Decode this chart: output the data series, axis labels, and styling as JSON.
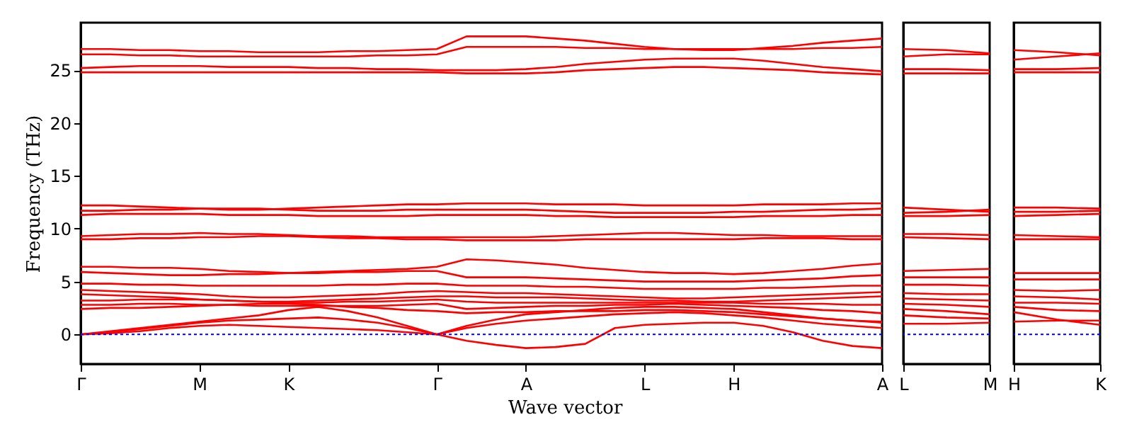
{
  "chart_data": [
    {
      "type": "line",
      "xlabel": "Wave vector",
      "ylabel": "Frequency (THz)",
      "marker": "none",
      "line_style": "solid",
      "grid": false,
      "categories": [
        "Γ",
        null,
        null,
        null,
        "M",
        null,
        null,
        "K",
        null,
        null,
        null,
        null,
        "Γ",
        null,
        null,
        "A",
        null,
        null,
        null,
        "L",
        null,
        null,
        "H",
        null,
        null,
        null,
        null,
        "A"
      ],
      "ylim": [
        -2.8,
        29.5
      ],
      "yticks": [
        0,
        5,
        10,
        15,
        20,
        25
      ],
      "ref_lines": [
        {
          "axis": "y",
          "value": 0,
          "color": "#0000ff",
          "line_style": "dotted"
        }
      ],
      "series": [
        {
          "color": "#ff0000",
          "values": [
            27.0,
            27.0,
            26.9,
            26.9,
            26.8,
            26.8,
            26.7,
            26.7,
            26.7,
            26.8,
            26.8,
            26.9,
            27.0,
            28.2,
            28.2,
            28.2,
            28.0,
            27.8,
            27.5,
            27.2,
            27.0,
            26.9,
            26.9,
            27.1,
            27.3,
            27.6,
            27.8,
            28.0
          ]
        },
        {
          "color": "#ff0000",
          "values": [
            26.5,
            26.5,
            26.4,
            26.4,
            26.3,
            26.3,
            26.3,
            26.3,
            26.3,
            26.3,
            26.4,
            26.4,
            26.5,
            27.2,
            27.2,
            27.2,
            27.2,
            27.1,
            27.1,
            27.0,
            27.0,
            27.0,
            27.0,
            27.0,
            27.0,
            27.1,
            27.1,
            27.2
          ]
        },
        {
          "color": "#ff0000",
          "values": [
            25.2,
            25.3,
            25.4,
            25.4,
            25.4,
            25.3,
            25.3,
            25.3,
            25.2,
            25.2,
            25.1,
            25.1,
            25.0,
            25.0,
            25.0,
            25.1,
            25.3,
            25.6,
            25.8,
            26.0,
            26.1,
            26.1,
            26.1,
            25.9,
            25.6,
            25.3,
            25.1,
            24.9
          ]
        },
        {
          "color": "#ff0000",
          "values": [
            24.8,
            24.8,
            24.8,
            24.8,
            24.8,
            24.8,
            24.8,
            24.8,
            24.8,
            24.8,
            24.8,
            24.8,
            24.8,
            24.7,
            24.7,
            24.7,
            24.8,
            25.0,
            25.1,
            25.2,
            25.3,
            25.3,
            25.2,
            25.1,
            25.0,
            24.8,
            24.7,
            24.6
          ]
        },
        {
          "color": "#ff0000",
          "values": [
            12.2,
            12.2,
            12.1,
            12.0,
            11.9,
            11.8,
            11.8,
            11.9,
            12.0,
            12.1,
            12.2,
            12.3,
            12.3,
            12.4,
            12.4,
            12.4,
            12.3,
            12.3,
            12.3,
            12.2,
            12.2,
            12.2,
            12.2,
            12.3,
            12.3,
            12.3,
            12.4,
            12.4
          ]
        },
        {
          "color": "#ff0000",
          "values": [
            11.7,
            11.7,
            11.8,
            11.8,
            11.9,
            11.9,
            11.9,
            11.8,
            11.7,
            11.7,
            11.7,
            11.8,
            11.8,
            11.8,
            11.8,
            11.8,
            11.7,
            11.6,
            11.5,
            11.5,
            11.5,
            11.5,
            11.6,
            11.6,
            11.7,
            11.8,
            11.8,
            11.9
          ]
        },
        {
          "color": "#ff0000",
          "values": [
            11.3,
            11.4,
            11.4,
            11.4,
            11.4,
            11.3,
            11.3,
            11.3,
            11.2,
            11.2,
            11.2,
            11.2,
            11.3,
            11.3,
            11.3,
            11.3,
            11.2,
            11.2,
            11.1,
            11.1,
            11.1,
            11.1,
            11.1,
            11.2,
            11.2,
            11.2,
            11.3,
            11.3
          ]
        },
        {
          "color": "#ff0000",
          "values": [
            9.3,
            9.4,
            9.5,
            9.5,
            9.6,
            9.5,
            9.5,
            9.4,
            9.3,
            9.3,
            9.2,
            9.2,
            9.2,
            9.2,
            9.2,
            9.2,
            9.3,
            9.4,
            9.5,
            9.6,
            9.6,
            9.5,
            9.4,
            9.4,
            9.3,
            9.3,
            9.3,
            9.3
          ]
        },
        {
          "color": "#ff0000",
          "values": [
            9.0,
            9.0,
            9.1,
            9.1,
            9.2,
            9.2,
            9.3,
            9.3,
            9.2,
            9.1,
            9.1,
            9.0,
            9.0,
            8.9,
            8.9,
            8.9,
            8.9,
            9.0,
            9.0,
            9.0,
            9.0,
            9.0,
            9.0,
            9.1,
            9.1,
            9.1,
            9.0,
            9.0
          ]
        },
        {
          "color": "#ff0000",
          "values": [
            6.4,
            6.4,
            6.3,
            6.3,
            6.2,
            6.0,
            5.9,
            5.8,
            5.9,
            6.0,
            6.1,
            6.2,
            6.4,
            7.1,
            7.0,
            6.8,
            6.6,
            6.3,
            6.1,
            5.9,
            5.8,
            5.8,
            5.7,
            5.8,
            6.0,
            6.2,
            6.5,
            6.7
          ]
        },
        {
          "color": "#ff0000",
          "values": [
            5.9,
            5.8,
            5.7,
            5.6,
            5.6,
            5.7,
            5.7,
            5.8,
            5.8,
            5.9,
            5.9,
            6.0,
            6.0,
            5.4,
            5.4,
            5.4,
            5.3,
            5.2,
            5.1,
            5.0,
            5.0,
            5.0,
            5.0,
            5.1,
            5.2,
            5.3,
            5.5,
            5.6
          ]
        },
        {
          "color": "#ff0000",
          "values": [
            4.8,
            4.8,
            4.7,
            4.7,
            4.6,
            4.6,
            4.6,
            4.6,
            4.6,
            4.7,
            4.7,
            4.8,
            4.8,
            4.6,
            4.6,
            4.6,
            4.5,
            4.5,
            4.4,
            4.3,
            4.3,
            4.3,
            4.3,
            4.4,
            4.4,
            4.5,
            4.6,
            4.6
          ]
        },
        {
          "color": "#ff0000",
          "values": [
            4.2,
            4.1,
            4.0,
            3.9,
            3.8,
            3.6,
            3.5,
            3.5,
            3.6,
            3.7,
            3.8,
            4.0,
            4.1,
            4.0,
            3.9,
            3.9,
            3.8,
            3.7,
            3.6,
            3.5,
            3.4,
            3.4,
            3.5,
            3.6,
            3.7,
            3.8,
            3.9,
            4.0
          ]
        },
        {
          "color": "#ff0000",
          "values": [
            3.8,
            3.7,
            3.6,
            3.5,
            3.3,
            3.2,
            3.1,
            3.1,
            3.2,
            3.3,
            3.4,
            3.5,
            3.6,
            3.6,
            3.5,
            3.5,
            3.5,
            3.4,
            3.3,
            3.2,
            3.2,
            3.1,
            3.1,
            3.2,
            3.3,
            3.4,
            3.5,
            3.6
          ]
        },
        {
          "color": "#ff0000",
          "values": [
            3.2,
            3.2,
            3.3,
            3.3,
            3.3,
            3.2,
            3.1,
            3.0,
            3.0,
            3.1,
            3.1,
            3.2,
            3.3,
            3.1,
            3.0,
            3.0,
            3.0,
            3.0,
            3.0,
            3.0,
            3.0,
            3.0,
            3.0,
            2.9,
            2.9,
            2.9,
            2.8,
            2.8
          ]
        },
        {
          "color": "#ff0000",
          "values": [
            2.8,
            2.8,
            2.9,
            2.9,
            2.8,
            2.8,
            2.7,
            2.7,
            2.7,
            2.7,
            2.7,
            2.8,
            2.9,
            2.4,
            2.5,
            2.6,
            2.7,
            2.7,
            2.8,
            2.8,
            2.9,
            2.8,
            2.7,
            2.6,
            2.5,
            2.3,
            2.2,
            2.0
          ]
        },
        {
          "color": "#ff0000",
          "values": [
            2.4,
            2.5,
            2.5,
            2.6,
            2.7,
            2.8,
            2.9,
            2.9,
            2.8,
            2.6,
            2.5,
            2.3,
            2.2,
            2.0,
            2.1,
            2.1,
            2.2,
            2.2,
            2.2,
            2.3,
            2.3,
            2.2,
            2.1,
            1.9,
            1.7,
            1.5,
            1.3,
            1.1
          ]
        },
        {
          "color": "#ff0000",
          "values": [
            0,
            0.3,
            0.6,
            0.9,
            1.2,
            1.5,
            1.8,
            2.3,
            2.6,
            2.2,
            1.6,
            0.8,
            0.0,
            0.8,
            1.4,
            1.9,
            2.1,
            2.3,
            2.5,
            2.6,
            2.6,
            2.5,
            2.4,
            2.1,
            1.8,
            1.5,
            1.3,
            1.2
          ]
        },
        {
          "color": "#ff0000",
          "values": [
            0,
            0.2,
            0.5,
            0.8,
            1.1,
            1.3,
            1.4,
            1.5,
            1.6,
            1.4,
            1.1,
            0.6,
            0.0,
            0.6,
            1.0,
            1.3,
            1.5,
            1.7,
            1.9,
            2.0,
            2.1,
            2.0,
            1.8,
            1.6,
            1.3,
            1.0,
            0.8,
            0.6
          ]
        },
        {
          "color": "#ff0000",
          "values": [
            0,
            0.1,
            0.3,
            0.6,
            0.8,
            0.9,
            0.8,
            0.7,
            0.6,
            0.5,
            0.4,
            0.2,
            0.0,
            -0.6,
            -1.0,
            -1.3,
            -1.2,
            -0.9,
            0.6,
            0.9,
            1.0,
            1.1,
            1.1,
            0.8,
            0.2,
            -0.6,
            -1.1,
            -1.3
          ]
        }
      ]
    },
    {
      "type": "line",
      "marker": "none",
      "line_style": "solid",
      "grid": false,
      "tick_labels": "x",
      "categories": [
        "L",
        null,
        "M"
      ],
      "ylim": [
        -2.8,
        29.5
      ],
      "yticks": [
        0,
        5,
        10,
        15,
        20,
        25
      ],
      "ref_lines": [
        {
          "axis": "y",
          "value": 0,
          "color": "#0000ff",
          "line_style": "dotted"
        }
      ],
      "series": [
        {
          "color": "#ff0000",
          "values": [
            27.0,
            26.9,
            26.6
          ]
        },
        {
          "color": "#ff0000",
          "values": [
            26.3,
            26.5,
            26.5
          ]
        },
        {
          "color": "#ff0000",
          "values": [
            25.1,
            25.1,
            25.0
          ]
        },
        {
          "color": "#ff0000",
          "values": [
            24.7,
            24.7,
            24.7
          ]
        },
        {
          "color": "#ff0000",
          "values": [
            12.0,
            11.8,
            11.6
          ]
        },
        {
          "color": "#ff0000",
          "values": [
            11.5,
            11.6,
            11.8
          ]
        },
        {
          "color": "#ff0000",
          "values": [
            11.2,
            11.2,
            11.3
          ]
        },
        {
          "color": "#ff0000",
          "values": [
            9.5,
            9.5,
            9.4
          ]
        },
        {
          "color": "#ff0000",
          "values": [
            9.2,
            9.1,
            9.0
          ]
        },
        {
          "color": "#ff0000",
          "values": [
            6.0,
            6.1,
            6.2
          ]
        },
        {
          "color": "#ff0000",
          "values": [
            5.4,
            5.4,
            5.4
          ]
        },
        {
          "color": "#ff0000",
          "values": [
            4.7,
            4.7,
            4.6
          ]
        },
        {
          "color": "#ff0000",
          "values": [
            3.9,
            3.8,
            3.8
          ]
        },
        {
          "color": "#ff0000",
          "values": [
            3.4,
            3.3,
            3.2
          ]
        },
        {
          "color": "#ff0000",
          "values": [
            2.9,
            2.8,
            2.6
          ]
        },
        {
          "color": "#ff0000",
          "values": [
            2.4,
            2.2,
            1.9
          ]
        },
        {
          "color": "#ff0000",
          "values": [
            1.8,
            1.6,
            1.5
          ]
        },
        {
          "color": "#ff0000",
          "values": [
            1.0,
            1.0,
            1.1
          ]
        }
      ]
    },
    {
      "type": "line",
      "marker": "none",
      "line_style": "solid",
      "grid": false,
      "tick_labels": "x",
      "categories": [
        "H",
        null,
        "K"
      ],
      "ylim": [
        -2.8,
        29.5
      ],
      "yticks": [
        0,
        5,
        10,
        15,
        20,
        25
      ],
      "ref_lines": [
        {
          "axis": "y",
          "value": 0,
          "color": "#0000ff",
          "line_style": "dotted"
        }
      ],
      "series": [
        {
          "color": "#ff0000",
          "values": [
            26.9,
            26.7,
            26.4
          ]
        },
        {
          "color": "#ff0000",
          "values": [
            26.0,
            26.3,
            26.6
          ]
        },
        {
          "color": "#ff0000",
          "values": [
            25.1,
            25.1,
            25.2
          ]
        },
        {
          "color": "#ff0000",
          "values": [
            24.8,
            24.8,
            24.8
          ]
        },
        {
          "color": "#ff0000",
          "values": [
            12.0,
            12.0,
            11.9
          ]
        },
        {
          "color": "#ff0000",
          "values": [
            11.6,
            11.6,
            11.7
          ]
        },
        {
          "color": "#ff0000",
          "values": [
            11.2,
            11.3,
            11.4
          ]
        },
        {
          "color": "#ff0000",
          "values": [
            9.4,
            9.3,
            9.2
          ]
        },
        {
          "color": "#ff0000",
          "values": [
            9.0,
            9.0,
            9.0
          ]
        },
        {
          "color": "#ff0000",
          "values": [
            5.8,
            5.8,
            5.8
          ]
        },
        {
          "color": "#ff0000",
          "values": [
            5.2,
            5.2,
            5.2
          ]
        },
        {
          "color": "#ff0000",
          "values": [
            4.2,
            4.1,
            4.2
          ]
        },
        {
          "color": "#ff0000",
          "values": [
            3.6,
            3.5,
            3.3
          ]
        },
        {
          "color": "#ff0000",
          "values": [
            3.0,
            3.0,
            2.9
          ]
        },
        {
          "color": "#ff0000",
          "values": [
            2.6,
            2.3,
            2.2
          ]
        },
        {
          "color": "#ff0000",
          "values": [
            2.1,
            1.4,
            0.9
          ]
        },
        {
          "color": "#ff0000",
          "values": [
            1.2,
            1.3,
            1.3
          ]
        }
      ]
    }
  ]
}
